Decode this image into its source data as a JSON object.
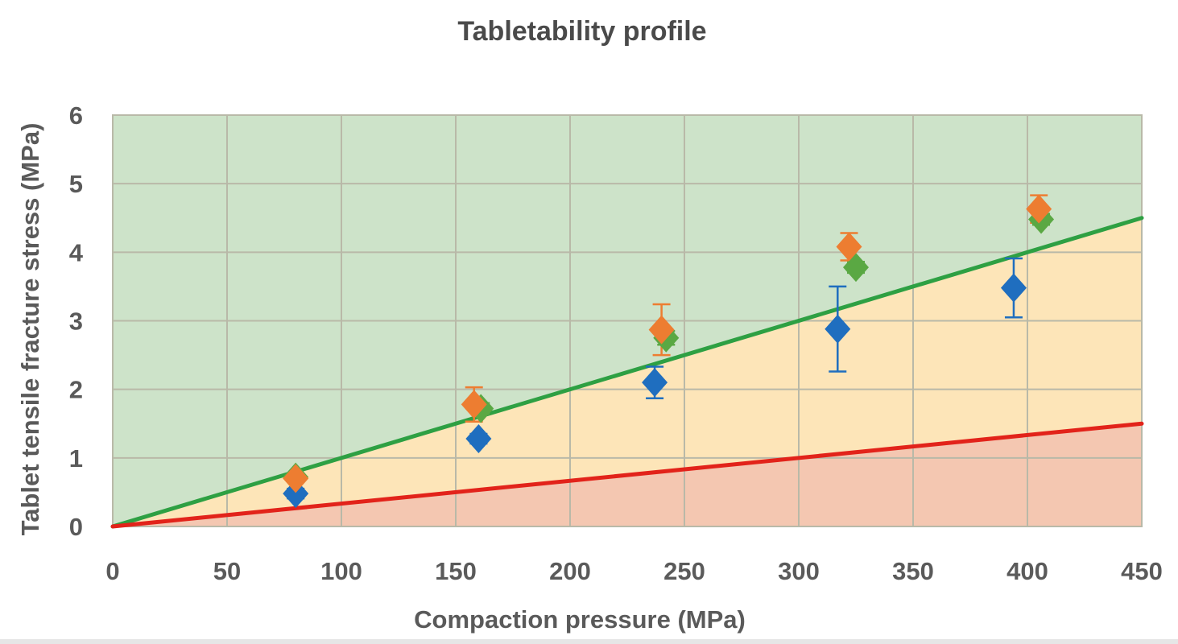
{
  "chart_data": {
    "type": "scatter",
    "title": "Tabletability profile",
    "xlabel": "Compaction pressure (MPa)",
    "ylabel": "Tablet tensile fracture stress (MPa)",
    "xlim": [
      0,
      450
    ],
    "ylim": [
      0,
      6
    ],
    "x_ticks": [
      0,
      50,
      100,
      150,
      200,
      250,
      300,
      350,
      400,
      450
    ],
    "y_ticks": [
      0,
      1,
      2,
      3,
      4,
      5,
      6
    ],
    "grid": true,
    "legend": "none",
    "regions": [
      {
        "fill": "#f4c7b1",
        "from": "x-axis",
        "to": "red line"
      },
      {
        "fill": "#fde5b8",
        "from": "red line",
        "to": "green line"
      },
      {
        "fill": "#cde3c9",
        "from": "green line",
        "to": "top"
      }
    ],
    "lines": [
      {
        "color": "#2ea043",
        "x": [
          0,
          450
        ],
        "y": [
          0,
          4.5
        ]
      },
      {
        "color": "#e2231a",
        "x": [
          0,
          450
        ],
        "y": [
          0,
          1.5
        ]
      }
    ],
    "series": [
      {
        "color": "#1f6ebf",
        "marker": "diamond",
        "x": [
          80,
          160,
          237,
          317,
          394
        ],
        "y": [
          0.48,
          1.28,
          2.1,
          2.88,
          3.48
        ],
        "err": [
          0.07,
          0.07,
          0.23,
          0.62,
          0.43
        ]
      },
      {
        "color": "#5aa843",
        "marker": "diamond",
        "x": [
          80,
          161,
          242,
          325,
          406
        ],
        "y": [
          0.72,
          1.72,
          2.75,
          3.78,
          4.48
        ],
        "err": [
          0.05,
          0.08,
          0.1,
          0.08,
          0.08
        ]
      },
      {
        "color": "#ed7d31",
        "marker": "diamond",
        "x": [
          80,
          158,
          240,
          322,
          405
        ],
        "y": [
          0.7,
          1.78,
          2.87,
          4.08,
          4.63
        ],
        "err": [
          0.04,
          0.25,
          0.37,
          0.2,
          0.2
        ]
      }
    ]
  }
}
